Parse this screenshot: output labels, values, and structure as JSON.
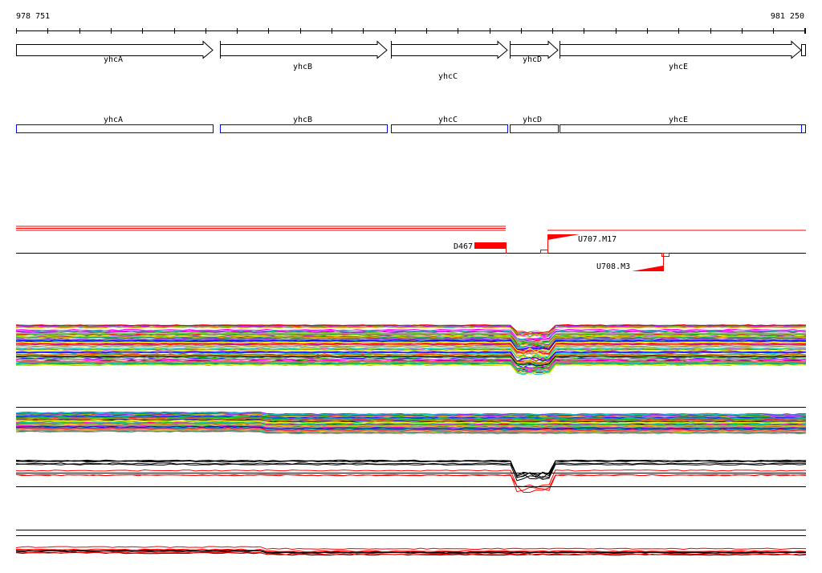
{
  "ruler": {
    "start_label": "978 751",
    "end_label": "981 250"
  },
  "genes": [
    {
      "name": "yhcA",
      "strand": "+"
    },
    {
      "name": "yhcB",
      "strand": "+"
    },
    {
      "name": "yhcC",
      "strand": "+"
    },
    {
      "name": "yhcD",
      "strand": "+"
    },
    {
      "name": "yhcE",
      "strand": "+"
    }
  ],
  "features": [
    {
      "label": "D467",
      "color": "#ff0000"
    },
    {
      "label": "U707.M17",
      "color": "#ff0000"
    },
    {
      "label": "U708.M3",
      "color": "#ff0000"
    }
  ],
  "colors": {
    "gene_box": "#0000ff",
    "feature": "#ff0000",
    "axis": "#000000"
  }
}
